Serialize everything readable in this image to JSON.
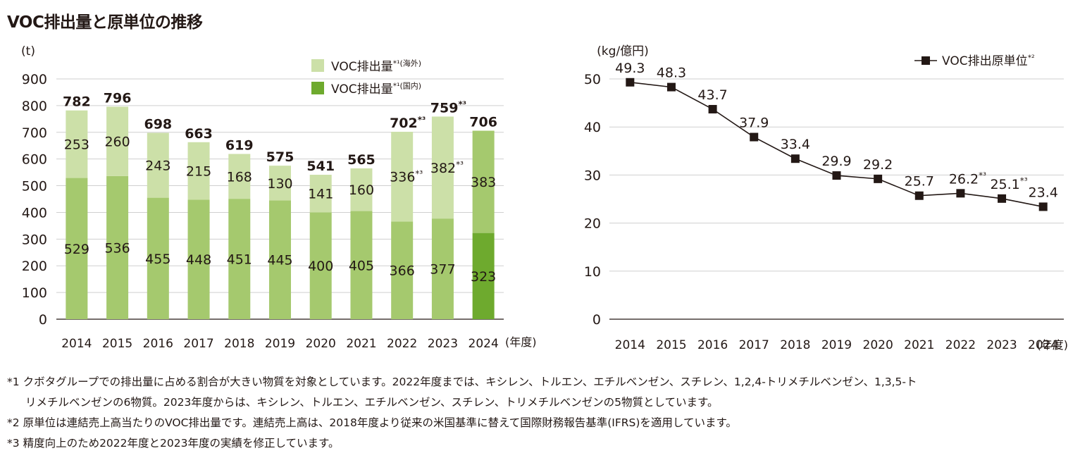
{
  "title": "VOC排出量と原単位の推移",
  "chart_data": [
    {
      "type": "bar",
      "stacked": true,
      "unit": "(t)",
      "xunit": "(年度)",
      "categories": [
        "2014",
        "2015",
        "2016",
        "2017",
        "2018",
        "2019",
        "2020",
        "2021",
        "2022",
        "2023",
        "2024"
      ],
      "ylim": [
        0,
        900
      ],
      "yticks": [
        0,
        100,
        200,
        300,
        400,
        500,
        600,
        700,
        800,
        900
      ],
      "grid": true,
      "legend": [
        {
          "label": "VOC排出量*¹(海外)",
          "color": "#cce0a8"
        },
        {
          "label": "VOC排出量*¹(国内)",
          "color": "#6eaa2e"
        }
      ],
      "series": [
        {
          "key": "domestic",
          "values": [
            529,
            536,
            455,
            448,
            451,
            445,
            400,
            405,
            366,
            377,
            323
          ],
          "labels": [
            "529",
            "536",
            "455",
            "448",
            "451",
            "445",
            "400",
            "405",
            "366",
            "377",
            "323"
          ]
        },
        {
          "key": "overseas",
          "values": [
            253,
            260,
            243,
            215,
            168,
            130,
            141,
            160,
            336,
            382,
            383
          ],
          "labels": [
            "253",
            "260",
            "243",
            "215",
            "168",
            "130",
            "141",
            "160",
            "336*³",
            "382*³",
            "383"
          ]
        }
      ],
      "totals": [
        782,
        796,
        698,
        663,
        619,
        575,
        541,
        565,
        702,
        759,
        706
      ],
      "total_labels": [
        "782",
        "796",
        "698",
        "663",
        "619",
        "575",
        "541",
        "565",
        "702*³",
        "759*³",
        "706"
      ],
      "colors": {
        "overseas": "#cce0a8",
        "domestic": "#a5c96e",
        "domestic_latest": "#6eaa2e",
        "overseas_latest": "#a5c96e"
      }
    },
    {
      "type": "line",
      "unit": "(kg/億円)",
      "xunit": "(年度)",
      "categories": [
        "2014",
        "2015",
        "2016",
        "2017",
        "2018",
        "2019",
        "2020",
        "2021",
        "2022",
        "2023",
        "2024"
      ],
      "ylim": [
        0,
        50
      ],
      "yticks": [
        0,
        10,
        20,
        30,
        40,
        50
      ],
      "grid": true,
      "legend": [
        {
          "label": "VOC排出原単位*²"
        }
      ],
      "series": [
        {
          "name": "VOC排出原単位",
          "values": [
            49.3,
            48.3,
            43.7,
            37.9,
            33.4,
            29.9,
            29.2,
            25.7,
            26.2,
            25.1,
            23.4
          ],
          "labels": [
            "49.3",
            "48.3",
            "43.7",
            "37.9",
            "33.4",
            "29.9",
            "29.2",
            "25.7",
            "26.2*³",
            "25.1*³",
            "23.4"
          ]
        }
      ],
      "color": "#231815"
    }
  ],
  "notes": [
    {
      "mark": "*1",
      "lines": [
        "クボタグループでの排出量に占める割合が大きい物質を対象としています。2022年度までは、キシレン、トルエン、エチルベンゼン、スチレン、1,2,4-トリメチルベンゼン、1,3,5-ト",
        "リメチルベンゼンの6物質。2023年度からは、キシレン、トルエン、エチルベンゼン、スチレン、トリメチルベンゼンの5物質としています。"
      ]
    },
    {
      "mark": "*2",
      "lines": [
        "原単位は連結売上高当たりのVOC排出量です。連結売上高は、2018年度より従来の米国基準に替えて国際財務報告基準(IFRS)を適用しています。"
      ]
    },
    {
      "mark": "*3",
      "lines": [
        "精度向上のため2022年度と2023年度の実績を修正しています。"
      ]
    }
  ]
}
